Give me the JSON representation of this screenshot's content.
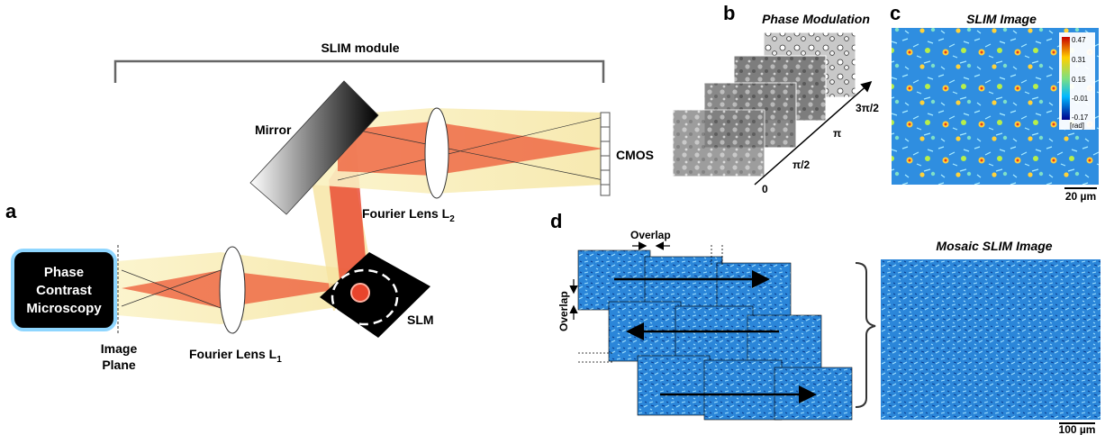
{
  "panels": {
    "a": "a",
    "b": "b",
    "c": "c",
    "d": "d"
  },
  "labels": {
    "slim_module": "SLIM module",
    "mirror": "Mirror",
    "fourier_lens_2": "Fourier Lens L",
    "fourier_lens_2_sub": "2",
    "fourier_lens_1": "Fourier Lens L",
    "fourier_lens_1_sub": "1",
    "cmos": "CMOS",
    "slm": "SLM",
    "image_plane_1": "Image",
    "image_plane_2": "Plane",
    "microscope_1": "Phase",
    "microscope_2": "Contrast",
    "microscopy_3": "Microscopy"
  },
  "phase_modulation": {
    "title": "Phase Modulation",
    "steps": [
      "0",
      "π/2",
      "π",
      "3π/2"
    ]
  },
  "slim_image": {
    "title": "SLIM Image",
    "colorbar_ticks": [
      "0.47",
      "0.31",
      "0.15",
      "-0.01",
      "-0.17"
    ],
    "colorbar_unit": "[rad]",
    "scale_bar": "20 µm"
  },
  "mosaic": {
    "overlap_h": "Overlap",
    "overlap_v": "Overlap",
    "title": "Mosaic SLIM Image",
    "scale_bar": "100 µm"
  },
  "colors": {
    "beam_red": "#e8352a",
    "beam_yellow": "#f6ecb0",
    "slim_blue": "#2a7fd4"
  }
}
